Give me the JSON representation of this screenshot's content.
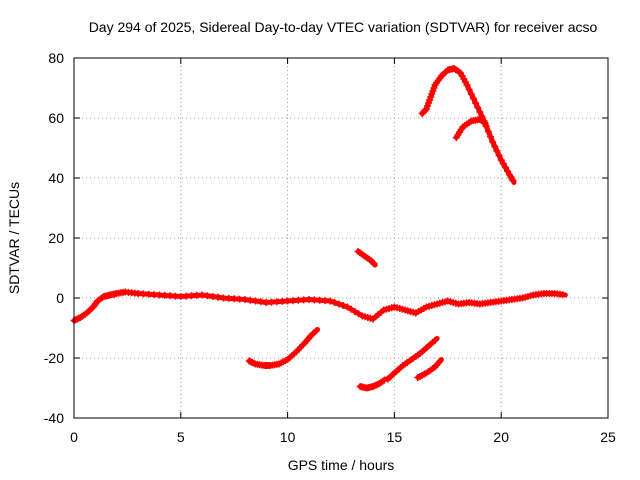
{
  "chart_data": {
    "type": "scatter",
    "title": "Day 294 of 2025, Sidereal Day-to-day VTEC variation (SDTVAR) for receiver acso",
    "xlabel": "GPS time / hours",
    "ylabel": "SDTVAR / TECUs",
    "xlim": [
      0,
      25
    ],
    "ylim": [
      -40,
      80
    ],
    "xticks": [
      0,
      5,
      10,
      15,
      20,
      25
    ],
    "yticks": [
      -40,
      -20,
      0,
      20,
      40,
      60,
      80
    ],
    "xtick_labels": [
      "0",
      "5",
      "10",
      "15",
      "20",
      "25"
    ],
    "ytick_labels": [
      "-40",
      "-20",
      "0",
      "20",
      "40",
      "60",
      "80"
    ],
    "grid": true,
    "grid_style": "dotted",
    "series_color": "#ff0000",
    "series": [
      {
        "name": "baseline",
        "x": [
          0.0,
          0.3,
          0.6,
          0.9,
          1.1,
          1.4,
          1.7,
          2.0,
          2.4,
          3.0,
          4.0,
          5.0,
          6.0,
          7.0,
          8.0,
          9.0,
          10.0,
          11.0,
          12.0,
          12.8,
          13.5,
          14.0,
          14.5,
          15.0,
          15.5,
          16.0,
          16.5,
          17.0,
          17.5,
          18.0,
          18.5,
          19.0,
          19.5,
          20.0,
          20.5,
          21.0,
          21.5,
          22.0,
          22.5,
          23.0
        ],
        "y": [
          -7.5,
          -6.5,
          -5,
          -3,
          -1,
          0.5,
          1,
          1.5,
          2,
          1.5,
          1,
          0.5,
          1,
          0,
          -0.5,
          -1.5,
          -1,
          -0.5,
          -1,
          -3,
          -6,
          -7,
          -4,
          -3,
          -4,
          -5,
          -3,
          -2,
          -1,
          -2,
          -1.5,
          -2,
          -1.5,
          -1,
          -0.5,
          0,
          1,
          1.5,
          1.5,
          1
        ]
      },
      {
        "name": "segment-1",
        "x": [
          8.2,
          8.5,
          8.9,
          9.2,
          9.6,
          10.0,
          10.4,
          10.8,
          11.1,
          11.4
        ],
        "y": [
          -21,
          -22,
          -22.5,
          -22.5,
          -22,
          -20.5,
          -18,
          -15,
          -12.5,
          -10.5
        ]
      },
      {
        "name": "segment-2",
        "x": [
          13.4,
          13.7,
          14.0,
          14.3,
          14.6
        ],
        "y": [
          -29.5,
          -30,
          -29.5,
          -28.5,
          -27
        ]
      },
      {
        "name": "segment-3",
        "x": [
          14.7,
          15.0,
          15.4,
          15.8,
          16.2,
          16.6,
          17.0
        ],
        "y": [
          -27,
          -25,
          -22.5,
          -20.5,
          -18.5,
          -16,
          -13.5
        ]
      },
      {
        "name": "segment-4",
        "x": [
          16.1,
          16.5,
          16.9,
          17.2
        ],
        "y": [
          -26.5,
          -25,
          -23,
          -20.5
        ]
      },
      {
        "name": "segment-5",
        "x": [
          13.3,
          13.6,
          13.9,
          14.1
        ],
        "y": [
          15.5,
          14,
          12.5,
          11
        ]
      },
      {
        "name": "segment-6",
        "x": [
          16.3,
          16.5,
          16.7,
          16.9,
          17.2,
          17.5,
          17.8,
          18.1,
          18.4,
          18.8,
          19.2,
          19.6,
          20.0,
          20.4,
          20.6
        ],
        "y": [
          61.5,
          63,
          67,
          71,
          74,
          76,
          76.5,
          75,
          71,
          65,
          59,
          52,
          46,
          41,
          38.5
        ]
      },
      {
        "name": "segment-7",
        "x": [
          17.9,
          18.2,
          18.6,
          19.0,
          19.3
        ],
        "y": [
          53.5,
          57,
          59,
          59.5,
          58
        ]
      }
    ]
  }
}
